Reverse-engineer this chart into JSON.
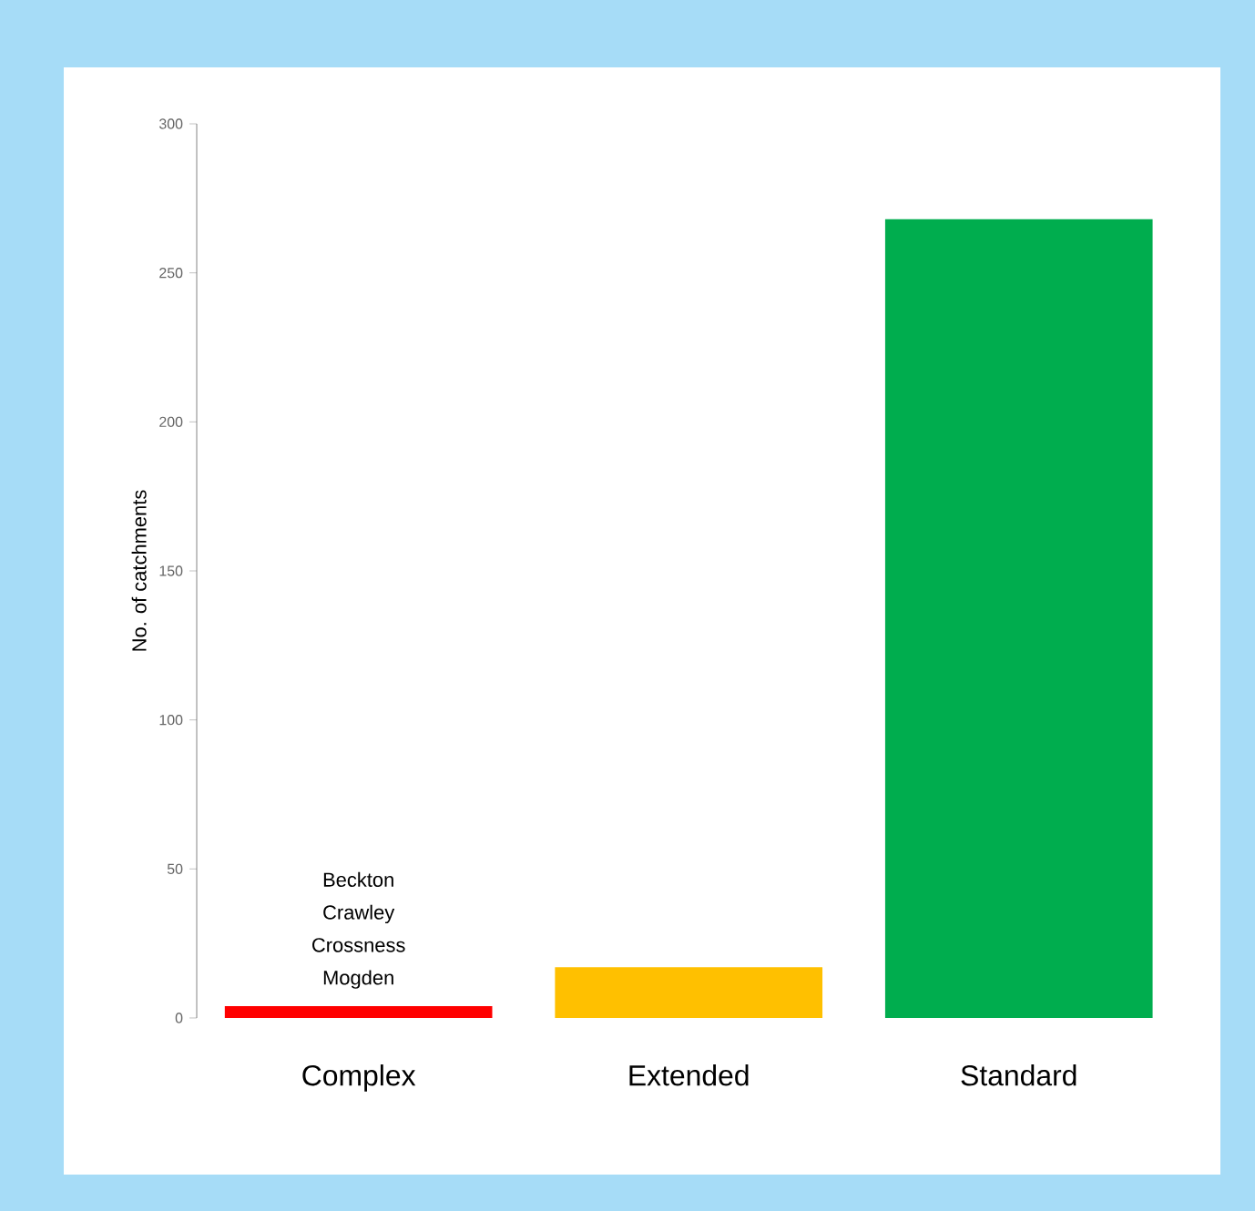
{
  "chart_data": {
    "type": "bar",
    "ylabel": "No. of catchments",
    "categories": [
      "Complex",
      "Extended",
      "Standard"
    ],
    "values": [
      4,
      17,
      268
    ],
    "colors": [
      "#ff0000",
      "#ffc000",
      "#00ad4e"
    ],
    "ylim": [
      0,
      300
    ],
    "yticks": [
      0,
      50,
      100,
      150,
      200,
      250,
      300
    ],
    "grid": false,
    "annotations": [
      "Beckton",
      "Crawley",
      "Crossness",
      "Mogden"
    ]
  }
}
